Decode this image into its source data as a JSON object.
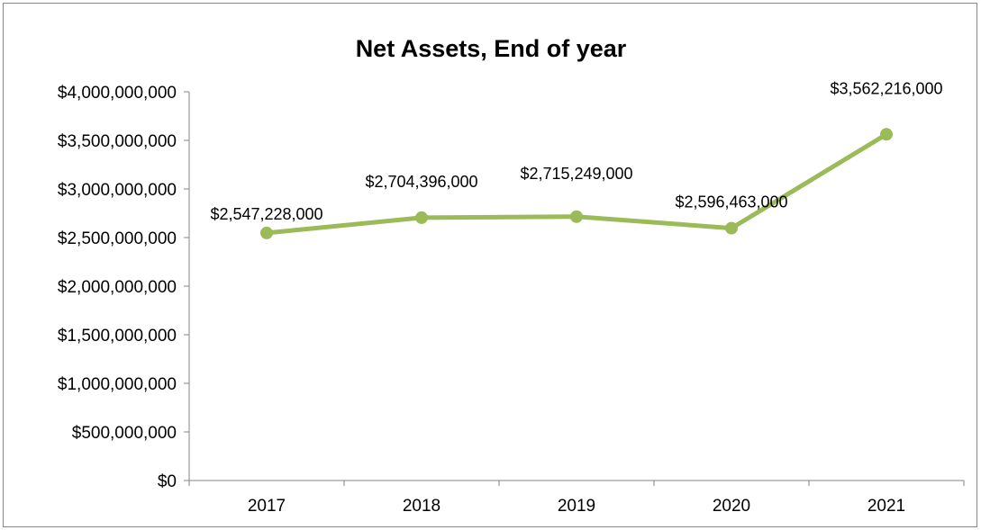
{
  "chart_data": {
    "type": "line",
    "title": "Net Assets, End of year",
    "xlabel": "",
    "ylabel": "",
    "categories": [
      "2017",
      "2018",
      "2019",
      "2020",
      "2021"
    ],
    "values": [
      2547228000,
      2704396000,
      2715249000,
      2596463000,
      3562216000
    ],
    "data_labels": [
      "$2,547,228,000",
      "$2,704,396,000",
      "$2,715,249,000",
      "$2,596,463,000",
      "$3,562,216,000"
    ],
    "ylim": [
      0,
      4000000000
    ],
    "y_ticks": [
      0,
      500000000,
      1000000000,
      1500000000,
      2000000000,
      2500000000,
      3000000000,
      3500000000,
      4000000000
    ],
    "y_tick_labels": [
      "$0",
      "$500,000,000",
      "$1,000,000,000",
      "$1,500,000,000",
      "$2,000,000,000",
      "$2,500,000,000",
      "$3,000,000,000",
      "$3,500,000,000",
      "$4,000,000,000"
    ],
    "grid": false,
    "legend": "none",
    "series_color": "#9BBB59",
    "axis_color": "#868686",
    "frame_color": "#878787",
    "text_color": "#000000"
  }
}
